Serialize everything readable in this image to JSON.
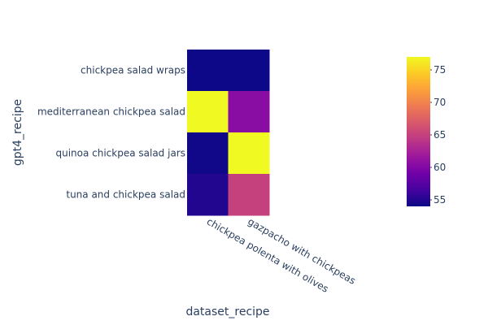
{
  "chart_data": {
    "type": "heatmap",
    "x": [
      "chickpea polenta with olives",
      "gazpacho with chickpeas"
    ],
    "y": [
      "chickpea salad wraps",
      "mediterranean chickpea salad",
      "quinoa  chickpea salad jars",
      "tuna and chickpea salad"
    ],
    "z": [
      [
        54.0,
        54.0
      ],
      [
        77.0,
        60.5
      ],
      [
        54.2,
        77.0
      ],
      [
        55.0,
        65.0
      ]
    ],
    "xlabel": "dataset_recipe",
    "ylabel": "gpt4_recipe",
    "zmin": 54,
    "zmax": 77,
    "colorbar_ticks": [
      55,
      60,
      65,
      70,
      75
    ],
    "colorscale": [
      "#0d0887",
      "#46039f",
      "#7201a8",
      "#9c179e",
      "#bd3786",
      "#d8576b",
      "#ed7953",
      "#fb9f3a",
      "#fdca26",
      "#f0f921"
    ]
  }
}
